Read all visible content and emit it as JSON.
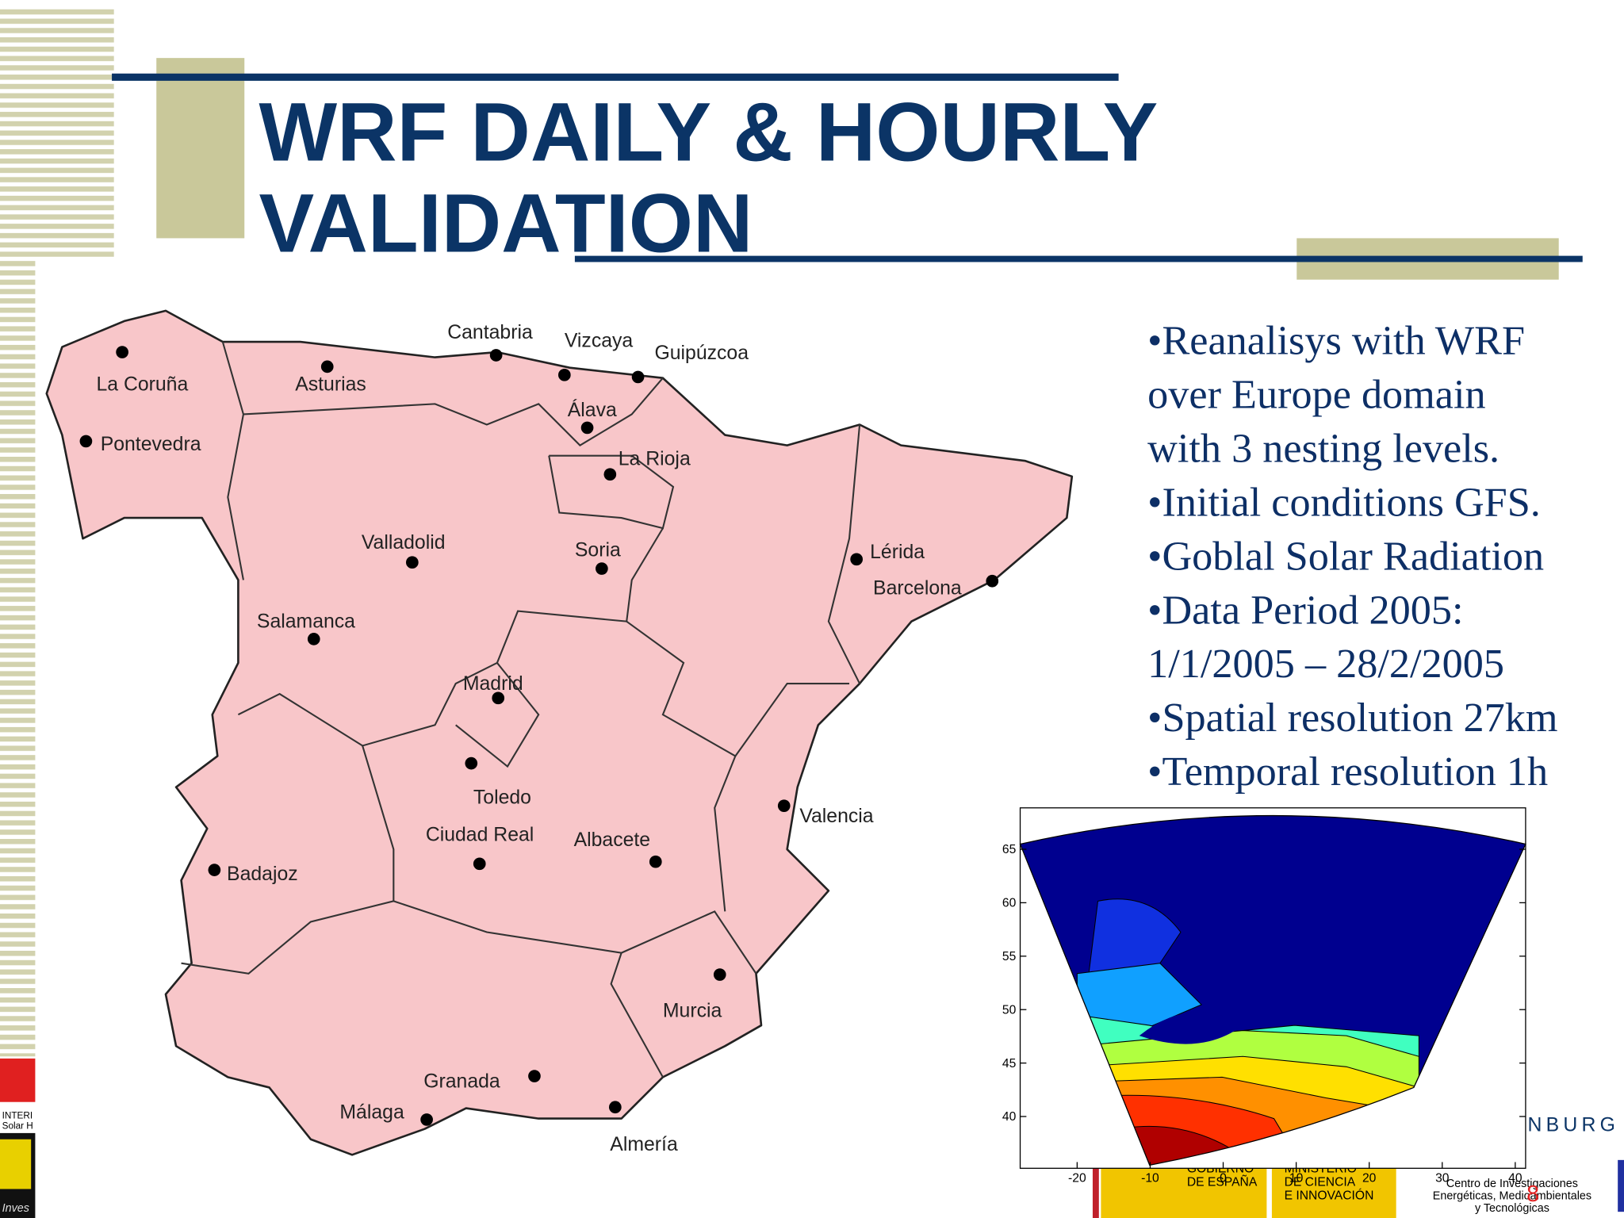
{
  "slide": {
    "title_lines": [
      "WRF DAILY & HOURLY",
      "VALIDATION"
    ],
    "bullet_lines": [
      "•Reanalisys with WRF",
      "over Europe domain",
      "with 3 nesting levels.",
      "•Initial conditions GFS.",
      "•Goblal Solar Radiation",
      "•Data Period 2005:",
      "1/1/2005 – 28/2/2005",
      "•Spatial resolution 27km",
      "•Temporal resolution 1h"
    ],
    "map_labels": [
      "La Coruña",
      "Asturias",
      "Cantabria",
      "Vizcaya",
      "Guipúzcoa",
      "Álava",
      "Pontevedra",
      "La Rioja",
      "Valladolid",
      "Soria",
      "Lérida",
      "Barcelona",
      "Salamanca",
      "Madrid",
      "Toledo",
      "Valencia",
      "Ciudad Real",
      "Albacete",
      "Badajoz",
      "Murcia",
      "Granada",
      "Málaga",
      "Almería"
    ],
    "inset_plot": {
      "yticks": [
        65,
        60,
        55,
        50,
        45,
        40
      ],
      "xticks": [
        -20,
        -10,
        0,
        10,
        20,
        30,
        40
      ]
    },
    "footer": {
      "partner_text": "NBURG",
      "page_number": "8",
      "gov_text": [
        "GOBIERNO",
        "DE ESPAÑA"
      ],
      "ministry_text": [
        "MINISTERIO",
        "DE CIENCIA",
        "E INNOVACIÓN"
      ],
      "ciemat_text": [
        "Centro de Investigaciones",
        "Energéticas, Medioambientales",
        "y Tecnológicas"
      ],
      "left_logo_text": [
        "INTERI",
        "Solar H",
        "Inves"
      ]
    }
  }
}
